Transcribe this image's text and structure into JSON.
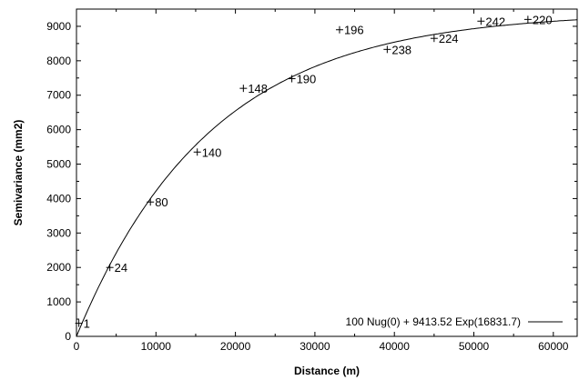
{
  "chart_data": {
    "type": "scatter",
    "xlabel": "Distance (m)",
    "ylabel": "Semivariance (mm2)",
    "xlim": [
      0,
      63000
    ],
    "ylim": [
      0,
      9500
    ],
    "x_ticks": [
      0,
      10000,
      20000,
      30000,
      40000,
      50000,
      60000
    ],
    "y_ticks": [
      0,
      1000,
      2000,
      3000,
      4000,
      5000,
      6000,
      7000,
      8000,
      9000
    ],
    "grid": false,
    "points": [
      {
        "x": 300,
        "y": 380,
        "label": "1"
      },
      {
        "x": 4200,
        "y": 2000,
        "label": "24"
      },
      {
        "x": 9300,
        "y": 3900,
        "label": "80"
      },
      {
        "x": 15200,
        "y": 5350,
        "label": "140"
      },
      {
        "x": 21000,
        "y": 7200,
        "label": "148"
      },
      {
        "x": 27100,
        "y": 7480,
        "label": "190"
      },
      {
        "x": 33100,
        "y": 8900,
        "label": "196"
      },
      {
        "x": 39100,
        "y": 8330,
        "label": "238"
      },
      {
        "x": 45000,
        "y": 8650,
        "label": "224"
      },
      {
        "x": 50900,
        "y": 9150,
        "label": "242"
      },
      {
        "x": 56800,
        "y": 9200,
        "label": "220"
      }
    ],
    "model": {
      "nugget": 100,
      "sill": 9413.52,
      "range": 16831.7,
      "label": "100 Nug(0) + 9413.52 Exp(16831.7)"
    },
    "legend_position": "bottom-right"
  }
}
